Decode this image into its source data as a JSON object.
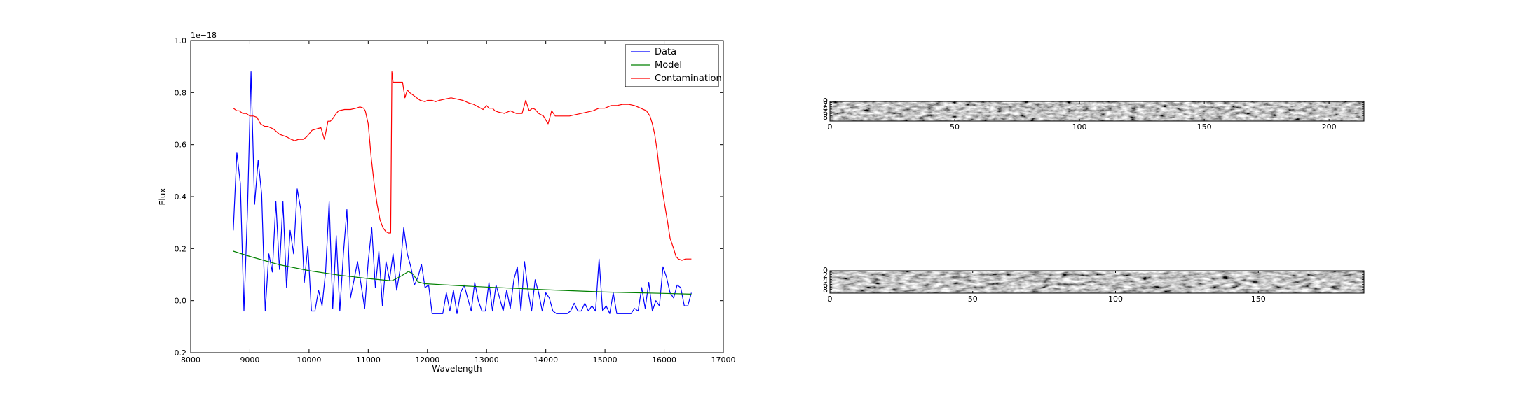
{
  "chart_data": [
    {
      "type": "line",
      "xlabel": "Wavelength",
      "ylabel": "Flux",
      "offset_text": "1e−18",
      "xlim": [
        8000,
        17000
      ],
      "ylim": [
        -0.2,
        1.0
      ],
      "xticks": [
        8000,
        9000,
        10000,
        11000,
        12000,
        13000,
        14000,
        15000,
        16000,
        17000
      ],
      "yticks": [
        -0.2,
        0.0,
        0.2,
        0.4,
        0.6,
        0.8,
        1.0
      ],
      "ytick_labels": [
        "−0.2",
        "0.0",
        "0.2",
        "0.4",
        "0.6",
        "0.8",
        "1.0"
      ],
      "legend_position": "upper right",
      "series": [
        {
          "name": "Data",
          "color": "#0000ff",
          "x": [
            8720,
            8780,
            8840,
            8900,
            8960,
            9020,
            9080,
            9140,
            9200,
            9260,
            9320,
            9380,
            9440,
            9500,
            9560,
            9620,
            9680,
            9740,
            9800,
            9860,
            9920,
            9980,
            10040,
            10100,
            10160,
            10220,
            10280,
            10340,
            10400,
            10460,
            10520,
            10580,
            10640,
            10700,
            10760,
            10820,
            10880,
            10940,
            11000,
            11060,
            11120,
            11180,
            11240,
            11300,
            11360,
            11420,
            11480,
            11540,
            11600,
            11660,
            11720,
            11780,
            11840,
            11900,
            11960,
            12020,
            12080,
            12140,
            12200,
            12260,
            12320,
            12380,
            12440,
            12500,
            12560,
            12620,
            12680,
            12740,
            12800,
            12860,
            12920,
            12980,
            13040,
            13100,
            13160,
            13220,
            13280,
            13340,
            13400,
            13460,
            13520,
            13580,
            13640,
            13700,
            13760,
            13820,
            13880,
            13940,
            14000,
            14060,
            14120,
            14180,
            14240,
            14300,
            14360,
            14420,
            14480,
            14540,
            14600,
            14660,
            14720,
            14780,
            14840,
            14900,
            14960,
            15020,
            15080,
            15140,
            15200,
            15260,
            15320,
            15380,
            15440,
            15500,
            15560,
            15620,
            15680,
            15740,
            15800,
            15860,
            15920,
            15980,
            16040,
            16100,
            16160,
            16220,
            16280,
            16340,
            16400,
            16460
          ],
          "y": [
            0.27,
            0.57,
            0.45,
            -0.04,
            0.35,
            0.88,
            0.37,
            0.54,
            0.41,
            -0.04,
            0.18,
            0.11,
            0.38,
            0.12,
            0.38,
            0.05,
            0.27,
            0.18,
            0.43,
            0.35,
            0.07,
            0.21,
            -0.04,
            -0.04,
            0.04,
            -0.02,
            0.11,
            0.38,
            -0.03,
            0.25,
            -0.04,
            0.18,
            0.35,
            0.01,
            0.08,
            0.15,
            0.06,
            -0.03,
            0.15,
            0.28,
            0.05,
            0.19,
            -0.02,
            0.15,
            0.08,
            0.18,
            0.04,
            0.12,
            0.28,
            0.18,
            0.13,
            0.06,
            0.09,
            0.14,
            0.05,
            0.06,
            -0.05,
            -0.05,
            -0.05,
            -0.05,
            0.03,
            -0.04,
            0.04,
            -0.05,
            0.03,
            0.06,
            0.01,
            -0.04,
            0.07,
            0.0,
            -0.04,
            -0.04,
            0.07,
            -0.04,
            0.06,
            0.01,
            -0.04,
            0.04,
            -0.03,
            0.08,
            0.13,
            -0.04,
            0.15,
            0.04,
            -0.04,
            0.08,
            0.03,
            -0.04,
            0.03,
            0.01,
            -0.04,
            -0.05,
            -0.05,
            -0.05,
            -0.05,
            -0.04,
            -0.01,
            -0.04,
            -0.04,
            -0.01,
            -0.04,
            -0.02,
            -0.04,
            0.16,
            -0.04,
            -0.02,
            -0.05,
            0.03,
            -0.05,
            -0.05,
            -0.05,
            -0.05,
            -0.05,
            -0.03,
            -0.04,
            0.05,
            -0.03,
            0.07,
            -0.04,
            0.0,
            -0.02,
            0.13,
            0.09,
            0.03,
            0.01,
            0.06,
            0.05,
            -0.02,
            -0.02,
            0.03
          ]
        },
        {
          "name": "Model",
          "color": "#008000",
          "x": [
            8720,
            9000,
            9500,
            10000,
            10500,
            11000,
            11400,
            11560,
            11680,
            11760,
            11840,
            11960,
            12500,
            13000,
            14000,
            15000,
            16000,
            16460
          ],
          "y": [
            0.19,
            0.17,
            0.138,
            0.115,
            0.098,
            0.085,
            0.076,
            0.095,
            0.112,
            0.102,
            0.072,
            0.065,
            0.058,
            0.052,
            0.042,
            0.033,
            0.028,
            0.025
          ]
        },
        {
          "name": "Contamination",
          "color": "#ff0000",
          "x": [
            8720,
            8780,
            8820,
            8880,
            8940,
            9000,
            9060,
            9120,
            9180,
            9250,
            9300,
            9400,
            9500,
            9560,
            9620,
            9700,
            9760,
            9820,
            9900,
            9960,
            10050,
            10120,
            10200,
            10260,
            10320,
            10360,
            10400,
            10460,
            10500,
            10600,
            10700,
            10800,
            10860,
            10920,
            10950,
            11000,
            11050,
            11100,
            11150,
            11200,
            11250,
            11300,
            11340,
            11380,
            11400,
            11420,
            11460,
            11520,
            11580,
            11620,
            11660,
            11700,
            11760,
            11820,
            11880,
            11960,
            12000,
            12080,
            12140,
            12200,
            12300,
            12400,
            12500,
            12600,
            12700,
            12780,
            12860,
            12940,
            13000,
            13040,
            13100,
            13140,
            13200,
            13300,
            13400,
            13500,
            13600,
            13660,
            13720,
            13780,
            13820,
            13880,
            13960,
            14040,
            14100,
            14160,
            14220,
            14300,
            14400,
            14600,
            14800,
            14900,
            15000,
            15100,
            15200,
            15300,
            15400,
            15500,
            15600,
            15700,
            15760,
            15800,
            15840,
            15880,
            15920,
            16000,
            16060,
            16100,
            16160,
            16200,
            16240,
            16300,
            16360,
            16460
          ],
          "y": [
            0.74,
            0.73,
            0.73,
            0.72,
            0.72,
            0.71,
            0.71,
            0.705,
            0.68,
            0.67,
            0.67,
            0.66,
            0.64,
            0.635,
            0.63,
            0.62,
            0.615,
            0.62,
            0.62,
            0.63,
            0.655,
            0.66,
            0.665,
            0.62,
            0.69,
            0.69,
            0.7,
            0.72,
            0.73,
            0.735,
            0.735,
            0.74,
            0.745,
            0.74,
            0.73,
            0.68,
            0.55,
            0.45,
            0.37,
            0.31,
            0.28,
            0.265,
            0.26,
            0.26,
            0.88,
            0.84,
            0.84,
            0.84,
            0.84,
            0.78,
            0.81,
            0.8,
            0.79,
            0.78,
            0.77,
            0.765,
            0.77,
            0.77,
            0.765,
            0.77,
            0.775,
            0.78,
            0.775,
            0.77,
            0.76,
            0.755,
            0.745,
            0.735,
            0.75,
            0.74,
            0.74,
            0.73,
            0.725,
            0.72,
            0.73,
            0.72,
            0.72,
            0.77,
            0.73,
            0.74,
            0.735,
            0.72,
            0.71,
            0.68,
            0.73,
            0.71,
            0.71,
            0.71,
            0.71,
            0.72,
            0.73,
            0.74,
            0.74,
            0.75,
            0.75,
            0.755,
            0.755,
            0.75,
            0.74,
            0.73,
            0.71,
            0.68,
            0.64,
            0.58,
            0.5,
            0.38,
            0.3,
            0.24,
            0.2,
            0.17,
            0.16,
            0.155,
            0.16,
            0.16
          ]
        }
      ]
    },
    {
      "type": "heatmap",
      "xlim": [
        0,
        214
      ],
      "xticks": [
        0,
        50,
        100,
        150,
        200
      ],
      "colormap": "gray",
      "ytick_labels_overlapping": [
        "0",
        "2",
        "4",
        "6",
        "8"
      ]
    },
    {
      "type": "heatmap",
      "xlim": [
        0,
        187
      ],
      "xticks": [
        0,
        50,
        100,
        150
      ],
      "colormap": "gray",
      "ytick_labels_overlapping": [
        "0",
        "2",
        "4",
        "6",
        "8"
      ]
    }
  ]
}
